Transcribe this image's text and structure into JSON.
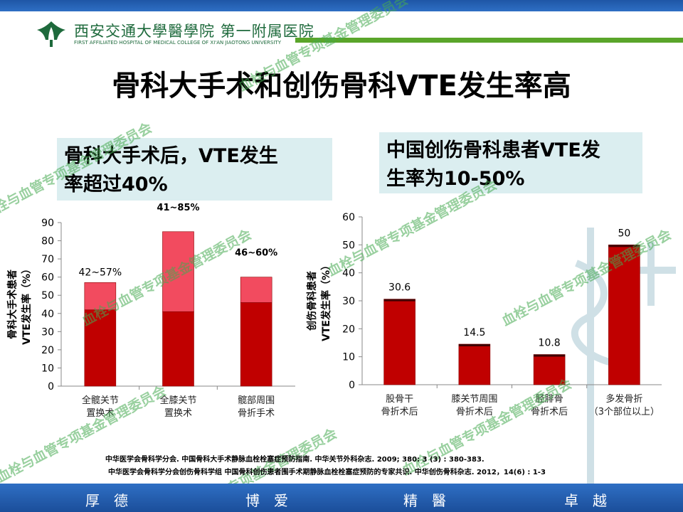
{
  "header": {
    "hospital_cn": "西安交通大學醫學院 第一附属医院",
    "hospital_en": "FIRST AFFILIATED HOSPITAL OF MEDICAL COLLEGE OF XI'AN JIAOTONG UNIVERSITY"
  },
  "title": "骨科大手术和创伤骨科VTE发生率高",
  "box_left": {
    "line1": "骨科大手术后，VTE发生",
    "line2": "率超过40%"
  },
  "box_right": {
    "line1": "中国创伤骨科患者VTE发",
    "line2": "生率为10-50%"
  },
  "watermark_text": "血栓与血管专项基金管理委员会",
  "colors": {
    "dark_red": "#c00000",
    "light_red": "#f24b5f",
    "box_bg": "#dbeef0",
    "green": "#5aa52a",
    "blue": "#2f6fc4"
  },
  "chart_data": [
    {
      "type": "bar",
      "stacked": true,
      "ylabel_line1": "骨科大手术患者",
      "ylabel_line2": "VTE发生率（%）",
      "ylim": [
        0,
        90
      ],
      "yticks": [
        0,
        10,
        20,
        30,
        40,
        50,
        60,
        70,
        80,
        90
      ],
      "categories": [
        {
          "line1": "全髋关节",
          "line2": "置换术"
        },
        {
          "line1": "全膝关节",
          "line2": "置换术"
        },
        {
          "line1": "髋部周围",
          "line2": "骨折手术"
        }
      ],
      "series": [
        {
          "values": [
            42,
            41,
            46
          ],
          "color": "#c00000"
        },
        {
          "values": [
            15,
            44,
            14
          ],
          "color": "#f24b5f"
        }
      ],
      "labels": [
        "42~57%",
        "41~85%",
        "46~60%"
      ]
    },
    {
      "type": "bar",
      "ylabel_line1": "创伤骨科患者",
      "ylabel_line2": "VTE发生率（%）",
      "ylim": [
        0,
        60
      ],
      "yticks": [
        0,
        10,
        20,
        30,
        40,
        50,
        60
      ],
      "categories": [
        {
          "line1": "股骨干",
          "line2": "骨折术后"
        },
        {
          "line1": "膝关节周围",
          "line2": "骨折术后"
        },
        {
          "line1": "胫腓骨",
          "line2": "骨折术后"
        },
        {
          "line1": "多发骨折",
          "line2": "（3个部位以上）"
        }
      ],
      "values": [
        30.6,
        14.5,
        10.8,
        50
      ],
      "value_labels": [
        "30.6",
        "14.5",
        "10.8",
        "50"
      ],
      "color": "#c00000"
    }
  ],
  "references": [
    "中华医学会骨科学分会. 中国骨科大手术静脉血栓栓塞症预防指南. 中华关节外科杂志. 2009; 380: 3 (3) : 380-383.",
    "中华医学会骨科学分会创伤骨科学组  中国骨科创伤患者围手术期静脉血栓栓塞症预防的专家共识. 中华创伤骨科杂志. 2012，14(6) : 1-3"
  ],
  "footer": [
    "厚德",
    "博爱",
    "精醫",
    "卓越"
  ]
}
